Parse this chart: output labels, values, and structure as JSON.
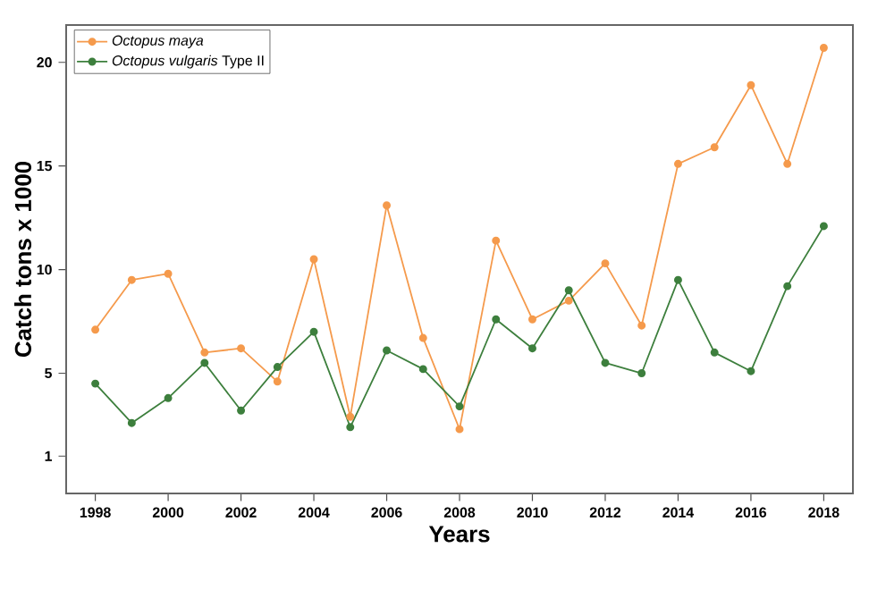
{
  "chart_data": {
    "type": "line",
    "xlabel": "Years",
    "ylabel": "Catch tons x 1000",
    "x": [
      1998,
      1999,
      2000,
      2001,
      2002,
      2003,
      2004,
      2005,
      2006,
      2007,
      2008,
      2009,
      2010,
      2011,
      2012,
      2013,
      2014,
      2015,
      2016,
      2017,
      2018
    ],
    "series": [
      {
        "name": "*Octopus maya*",
        "color": "#f59a4c",
        "values": [
          7.1,
          9.5,
          9.8,
          6.0,
          6.2,
          4.6,
          10.5,
          2.9,
          13.1,
          6.7,
          2.3,
          11.4,
          7.6,
          8.5,
          10.3,
          7.3,
          15.1,
          15.9,
          18.9,
          15.1,
          20.7
        ]
      },
      {
        "name": "*Octopus vulgaris* Type II",
        "color": "#3d7f3d",
        "values": [
          4.5,
          2.6,
          3.8,
          5.5,
          3.2,
          5.3,
          7.0,
          2.4,
          6.1,
          5.2,
          3.4,
          7.6,
          6.2,
          9.0,
          5.5,
          5.0,
          9.5,
          6.0,
          5.1,
          9.2,
          12.1
        ]
      }
    ],
    "xlim": [
      1997.2,
      2018.8
    ],
    "ylim": [
      -0.8,
      21.8
    ],
    "xticks": [
      1998,
      2000,
      2002,
      2004,
      2006,
      2008,
      2010,
      2012,
      2014,
      2016,
      2018
    ],
    "yticks": [
      1,
      5,
      10,
      15,
      20
    ],
    "marker": "circle",
    "legend": "top left",
    "grid": false
  }
}
